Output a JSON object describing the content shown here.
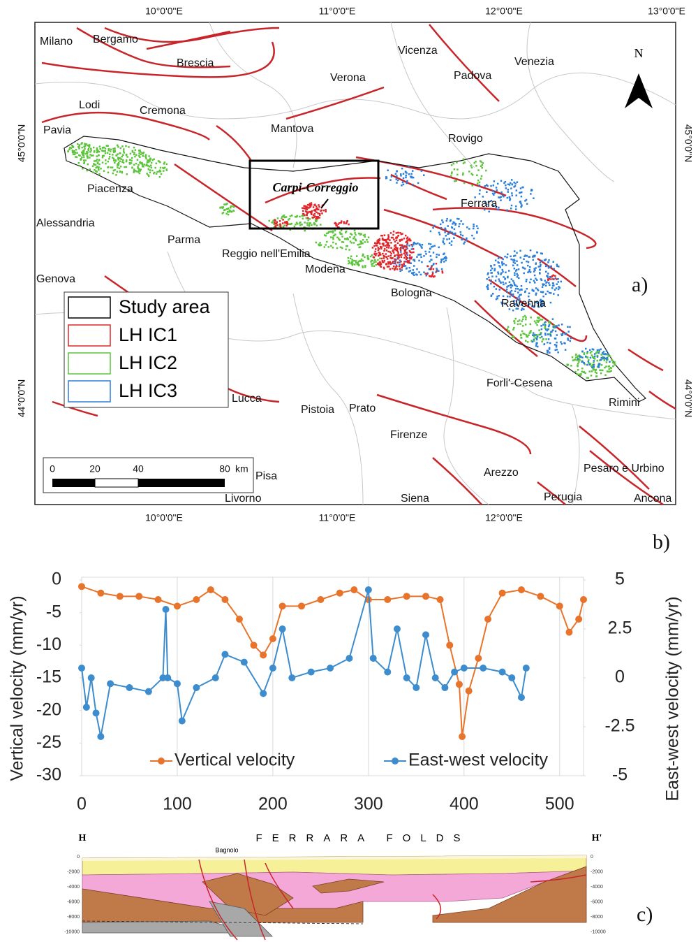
{
  "map": {
    "longitude_labels": [
      "10°0'0\"E",
      "11°0'0\"E",
      "12°0'0\"E",
      "13°0'0\"E"
    ],
    "latitude_labels": [
      "45°0'0\"N",
      "44°0'0\"N"
    ],
    "places": [
      "Milano",
      "Bergamo",
      "Brescia",
      "Vicenza",
      "Verona",
      "Padova",
      "Venezia",
      "Lodi",
      "Cremona",
      "Pavia",
      "Mantova",
      "Rovigo",
      "Piacenza",
      "Alessandria",
      "Ferrara",
      "Parma",
      "Reggio nell'Emilia",
      "Modena",
      "Genova",
      "Bologna",
      "Ravenna",
      "Forli'-Cesena",
      "Lucca",
      "Rimini",
      "Pistoia",
      "Prato",
      "Firenze",
      "Arezzo",
      "Pesaro e Urbino",
      "Pisa",
      "Perugia",
      "Livorno",
      "Siena",
      "Ancona"
    ],
    "legend": [
      {
        "label": "Study area",
        "color": "#000000"
      },
      {
        "label": "LH IC1",
        "color": "#e0252a"
      },
      {
        "label": "LH IC2",
        "color": "#5bc43a"
      },
      {
        "label": "LH IC3",
        "color": "#2a7fd8"
      }
    ],
    "scale_bar": {
      "ticks": [
        0,
        20,
        40,
        80
      ],
      "unit": "km"
    },
    "north": "N",
    "inset_label": "Carpi-Correggio",
    "panel_label": "a)"
  },
  "chart_data": {
    "type": "line",
    "panel_label": "b)",
    "ylabel": "Vertical velocity (mm/yr)",
    "y2label": "East-west velocity (mm/yr)",
    "xlim": [
      0,
      525
    ],
    "xticks": [
      0,
      100,
      200,
      300,
      400,
      500
    ],
    "ylim": [
      -30,
      0
    ],
    "yticks": [
      0,
      -5,
      -10,
      -15,
      -20,
      -25,
      -30
    ],
    "y2lim": [
      -5,
      5
    ],
    "y2ticks": [
      5,
      2.5,
      0,
      -2.5,
      -5
    ],
    "grid": true,
    "series": [
      {
        "name": "Vertical velocity",
        "color": "#e8742c",
        "axis": "y",
        "x": [
          0,
          20,
          40,
          60,
          80,
          100,
          120,
          135,
          150,
          165,
          180,
          190,
          200,
          210,
          230,
          250,
          270,
          285,
          300,
          320,
          340,
          360,
          375,
          385,
          395,
          398,
          405,
          415,
          425,
          440,
          460,
          480,
          500,
          510,
          520,
          525
        ],
        "values": [
          -1,
          -2,
          -2.5,
          -2.5,
          -3,
          -4,
          -3,
          -1.5,
          -3,
          -6,
          -10,
          -11.5,
          -9,
          -4,
          -4,
          -3,
          -2,
          -1.5,
          -3,
          -3,
          -2.5,
          -2.5,
          -3,
          -10,
          -16,
          -24,
          -17,
          -12,
          -6,
          -2,
          -1.5,
          -2.5,
          -4,
          -8,
          -6,
          -3
        ]
      },
      {
        "name": "East-west velocity",
        "color": "#3d8ccd",
        "axis": "y2",
        "x": [
          0,
          5,
          10,
          15,
          20,
          30,
          50,
          70,
          85,
          88,
          90,
          100,
          105,
          120,
          140,
          150,
          170,
          190,
          200,
          210,
          220,
          240,
          260,
          280,
          300,
          305,
          320,
          330,
          340,
          350,
          360,
          370,
          380,
          390,
          400,
          420,
          440,
          450,
          460,
          465
        ],
        "values": [
          0.5,
          -1.5,
          0,
          -1.8,
          -3,
          -0.3,
          -0.5,
          -0.7,
          0,
          3.5,
          0,
          -0.3,
          -2.2,
          -0.5,
          0,
          1.2,
          0.8,
          -0.8,
          0.5,
          2.5,
          0,
          0.3,
          0.5,
          1,
          4.5,
          1,
          0.3,
          2.5,
          0,
          -0.5,
          2.2,
          0,
          -0.5,
          0.3,
          0.5,
          0.5,
          0.3,
          0,
          -1,
          0.5
        ]
      }
    ]
  },
  "cross_section": {
    "left_label": "H",
    "right_label": "H'",
    "title": "FERRARA FOLDS",
    "place": "Bagnolo",
    "depths": [
      0,
      -2000,
      -4000,
      -6000,
      -8000,
      -10000
    ],
    "panel_label": "c)"
  }
}
